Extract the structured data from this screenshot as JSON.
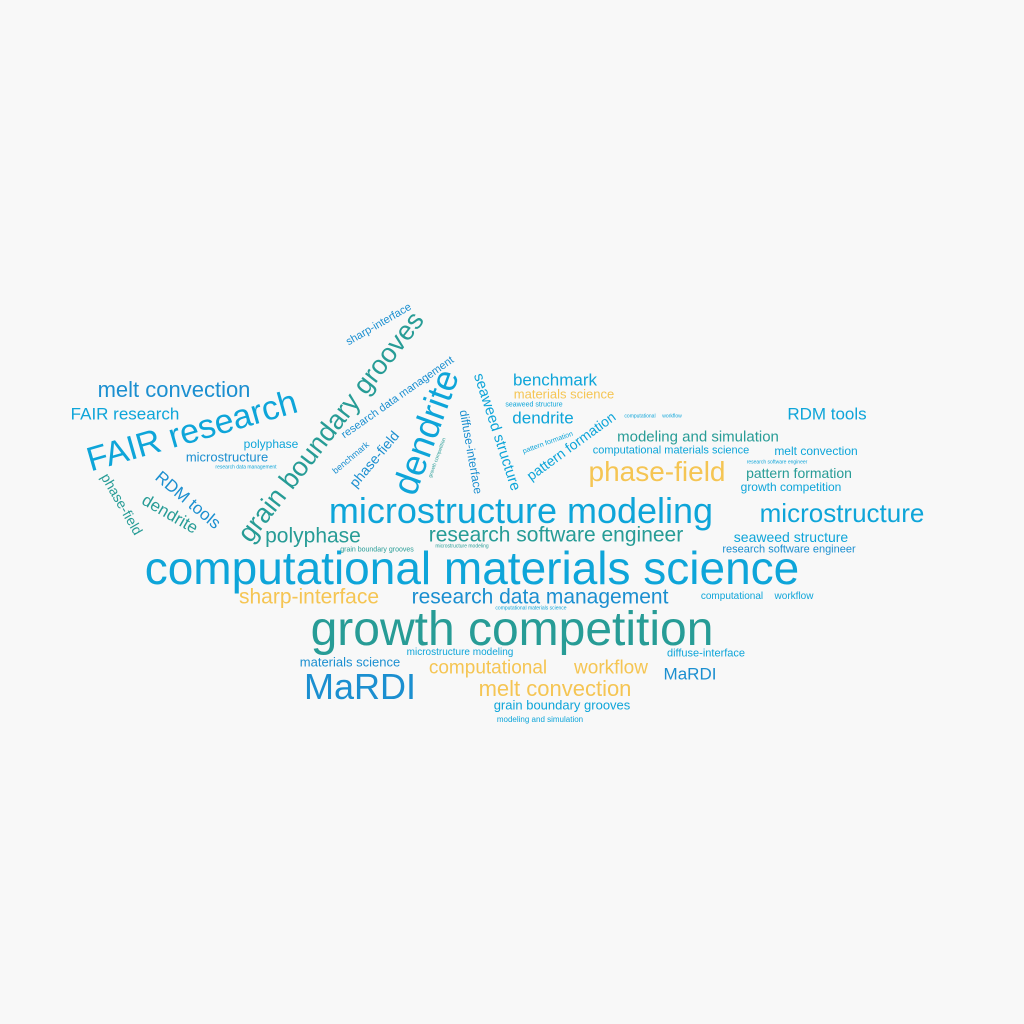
{
  "palette": {
    "blue": "#0ea5d9",
    "teal": "#279c96",
    "yellow": "#f5c553",
    "deep_blue": "#1b8fd0",
    "background": "#f8f8f8"
  },
  "words": [
    {
      "text": "computational materials science"
    },
    {
      "text": "growth competition"
    },
    {
      "text": "microstructure modeling"
    },
    {
      "text": "MaRDI"
    },
    {
      "text": "FAIR research"
    },
    {
      "text": "grain boundary grooves"
    },
    {
      "text": "dendrite"
    },
    {
      "text": "phase-field"
    },
    {
      "text": "microstructure"
    },
    {
      "text": "research software engineer"
    },
    {
      "text": "research data management"
    },
    {
      "text": "polyphase"
    },
    {
      "text": "sharp-interface"
    },
    {
      "text": "melt convection"
    },
    {
      "text": "melt convection"
    },
    {
      "text": "computational"
    },
    {
      "text": "workflow"
    },
    {
      "text": "benchmark"
    },
    {
      "text": "dendrite"
    },
    {
      "text": "RDM tools"
    },
    {
      "text": "modeling and simulation"
    },
    {
      "text": "pattern formation"
    },
    {
      "text": "MaRDI"
    },
    {
      "text": "FAIR research"
    },
    {
      "text": "seaweed structure"
    },
    {
      "text": "seaweed structure"
    },
    {
      "text": "pattern formation"
    },
    {
      "text": "diffuse-interface"
    },
    {
      "text": "RDM tools"
    },
    {
      "text": "dendrite"
    },
    {
      "text": "phase-field"
    },
    {
      "text": "microstructure"
    },
    {
      "text": "polyphase"
    },
    {
      "text": "materials science"
    },
    {
      "text": "materials science"
    },
    {
      "text": "growth competition"
    },
    {
      "text": "grain boundary grooves"
    },
    {
      "text": "computational materials science"
    },
    {
      "text": "melt convection"
    },
    {
      "text": "research software engineer"
    },
    {
      "text": "diffuse-interface"
    },
    {
      "text": "microstructure modeling"
    },
    {
      "text": "sharp-interface"
    },
    {
      "text": "research data management"
    },
    {
      "text": "phase-field"
    },
    {
      "text": "benchmark"
    },
    {
      "text": "modeling and simulation"
    },
    {
      "text": "computational"
    },
    {
      "text": "workflow"
    },
    {
      "text": "pattern formation"
    },
    {
      "text": "seaweed structure"
    },
    {
      "text": "research data management"
    },
    {
      "text": "research software engineer"
    },
    {
      "text": "computational"
    },
    {
      "text": "workflow"
    },
    {
      "text": "grain boundary grooves"
    },
    {
      "text": "microstructure modeling"
    },
    {
      "text": "computational materials science"
    },
    {
      "text": "growth competition"
    }
  ]
}
